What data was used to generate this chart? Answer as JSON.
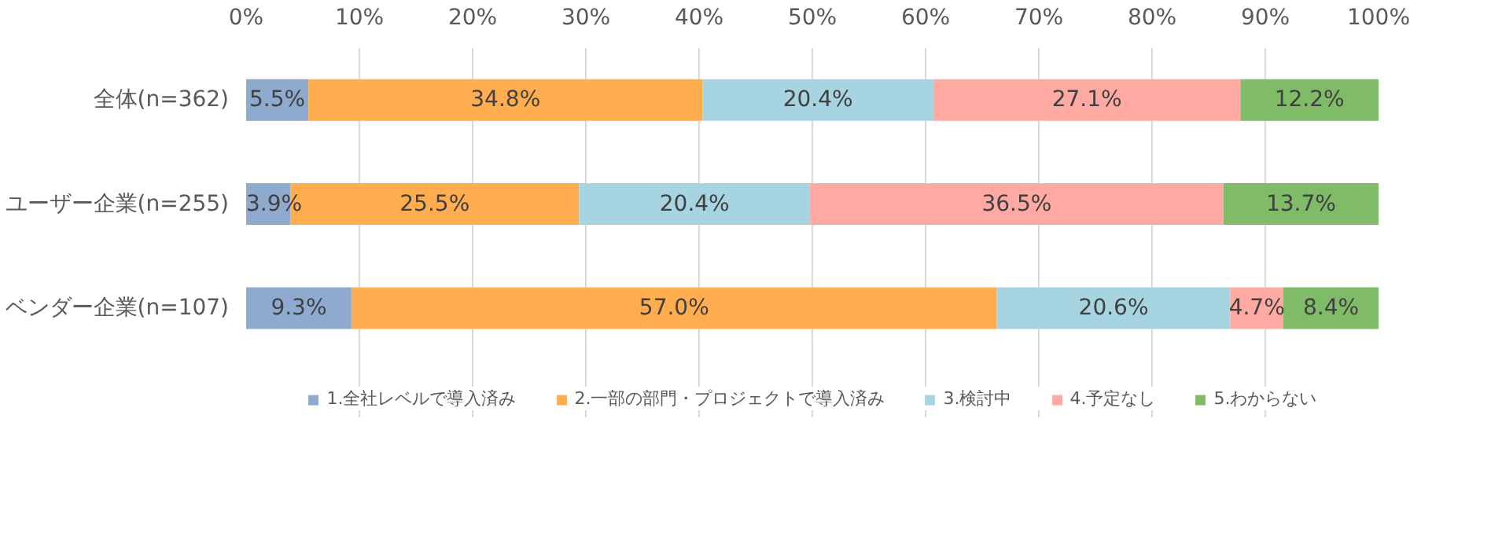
{
  "chart_data": {
    "type": "bar",
    "orientation": "horizontal",
    "stacked": true,
    "categories": [
      "全体(n=362)",
      "ユーザー企業(n=255)",
      "ベンダー企業(n=107)"
    ],
    "series": [
      {
        "name": "1.全社レベルで導入済み",
        "color": "#8eaacf",
        "values": [
          5.5,
          3.9,
          9.3
        ],
        "value_labels": [
          "5.5%",
          "3.9%",
          "9.3%"
        ]
      },
      {
        "name": "2.一部の部門・プロジェクトで導入済み",
        "color": "#ffad4f",
        "values": [
          34.8,
          25.5,
          57.0
        ],
        "value_labels": [
          "34.8%",
          "25.5%",
          "57.0%"
        ]
      },
      {
        "name": "3.検討中",
        "color": "#a6d4e0",
        "values": [
          20.4,
          20.4,
          20.6
        ],
        "value_labels": [
          "20.4%",
          "20.4%",
          "20.6%"
        ]
      },
      {
        "name": "4.予定なし",
        "color": "#ffa9a3",
        "values": [
          27.1,
          36.5,
          4.7
        ],
        "value_labels": [
          "27.1%",
          "36.5%",
          "4.7%"
        ]
      },
      {
        "name": "5.わからない",
        "color": "#80bb68",
        "values": [
          12.2,
          13.7,
          8.4
        ],
        "value_labels": [
          "12.2%",
          "13.7%",
          "8.4%"
        ]
      }
    ],
    "xlim": [
      0,
      100
    ],
    "xticks": [
      {
        "value": 0,
        "label": "0%"
      },
      {
        "value": 10,
        "label": "10%"
      },
      {
        "value": 20,
        "label": "20%"
      },
      {
        "value": 30,
        "label": "30%"
      },
      {
        "value": 40,
        "label": "40%"
      },
      {
        "value": 50,
        "label": "50%"
      },
      {
        "value": 60,
        "label": "60%"
      },
      {
        "value": 70,
        "label": "70%"
      },
      {
        "value": 80,
        "label": "80%"
      },
      {
        "value": 90,
        "label": "90%"
      },
      {
        "value": 100,
        "label": "100%"
      }
    ],
    "grid": "x",
    "legend": "bottom"
  }
}
